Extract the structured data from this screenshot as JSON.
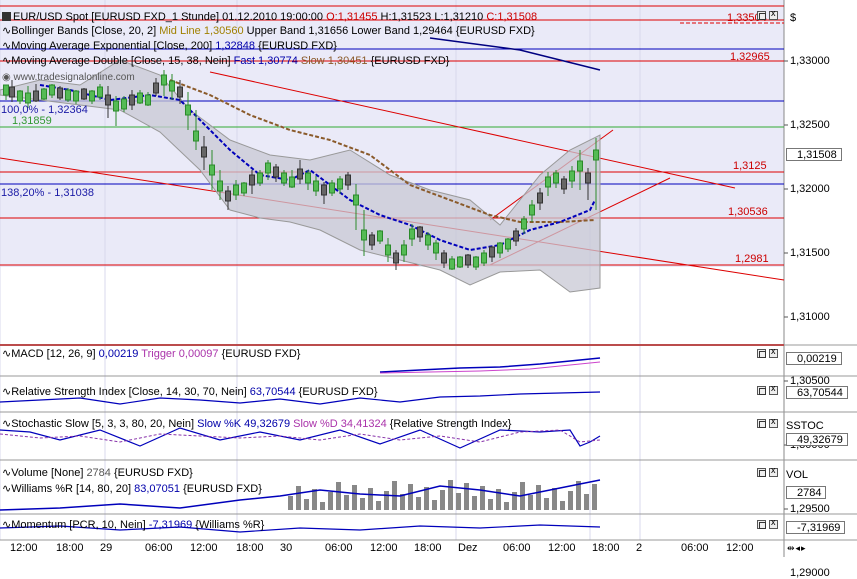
{
  "colors": {
    "panel_bg": "#eaeaf8",
    "lower_bg": "#ffffff",
    "grid_line": "#cfcfe8",
    "green_line": "#33aa33",
    "red": "#dd0000",
    "blue": "#0000bb",
    "navy": "#000080",
    "band_fill": "#c8c8d4",
    "candle_up": "#2a8a2a",
    "candle_down": "#333333",
    "brown": "#8a5a2a",
    "purple": "#8833aa"
  },
  "main": {
    "title_line": "EUR/USD Spot [EURUSD FXD_1 Stunde] 01.12.2010 19:00:00",
    "ohlc_o": "O:1,31455",
    "ohlc_h": "H:1,31523",
    "ohlc_l": "L:1,31210",
    "ohlc_c": "C:1,31508",
    "bollinger": {
      "head": "Bollinger Bands [Close, 20, 2]",
      "mid": "Mid Line 1,30560",
      "upper": "Upper Band 1,31656",
      "lower": "Lower Band 1,29464",
      "sym": "{EURUSD FXD}"
    },
    "ema": {
      "head": "Moving Average Exponential [Close, 200]",
      "val": "1,32848",
      "sym": "{EURUSD FXD}"
    },
    "mad": {
      "head": "Moving Average Double [Close, 15, 38, Nein]",
      "fast": "Fast 1,30774",
      "slow": "Slow 1,30451",
      "sym": "{EURUSD FXD}"
    },
    "watermark": "www.tradesignalonline.com",
    "fib_left_top": "100,0% - 1,32364",
    "fib_left_green": "1,31859",
    "fib_mid": "138,20% - 1,31038",
    "hlines": {
      "top": "1,33504",
      "second": "1,32965",
      "third": "1,3125",
      "fourth": "1,30536",
      "fifth": "1,2981"
    },
    "price_badge": "1,31508",
    "currency": "$",
    "yticks": [
      "1,33000",
      "1,32500",
      "1,32000",
      "1,31500",
      "1,31000",
      "1,30500",
      "1,30000",
      "1,29500",
      "1,29000"
    ]
  },
  "indicators": {
    "macd": {
      "head": "MACD [12, 26, 9]",
      "val": "0,00219",
      "trigger": "Trigger 0,00097",
      "sym": "{EURUSD FXD}",
      "badge": "0,00219"
    },
    "rsi": {
      "head": "Relative Strength Index [Close, 14, 30, 70, Nein]",
      "val": "63,70544",
      "sym": "{EURUSD FXD}",
      "badge": "63,70544"
    },
    "stoch": {
      "head": "Stochastic Slow [5, 3, 3, 80, 20, Nein]",
      "k": "Slow %K 49,32679",
      "d": "Slow %D 34,41324",
      "sym": "{Relative Strength Index}",
      "name": "SSTOC",
      "badge": "49,32679"
    },
    "volume": {
      "head": "Volume [None]",
      "val": "2784",
      "sym": "{EURUSD FXD}",
      "name": "VOL",
      "badge": "2784"
    },
    "williams": {
      "head": "Williams %R [14, 80, 20]",
      "val": "83,07051",
      "sym": "{EURUSD FXD}"
    },
    "momentum": {
      "head": "Momentum [PCR, 10, Nein]",
      "val": "-7,31969",
      "sym": "{Williams %R}",
      "badge": "-7,31969"
    }
  },
  "xaxis": [
    "12:00",
    "18:00",
    "29",
    "06:00",
    "12:00",
    "18:00",
    "30",
    "06:00",
    "12:00",
    "18:00",
    "Dez",
    "06:00",
    "12:00",
    "18:00",
    "2",
    "06:00",
    "12:00"
  ]
}
